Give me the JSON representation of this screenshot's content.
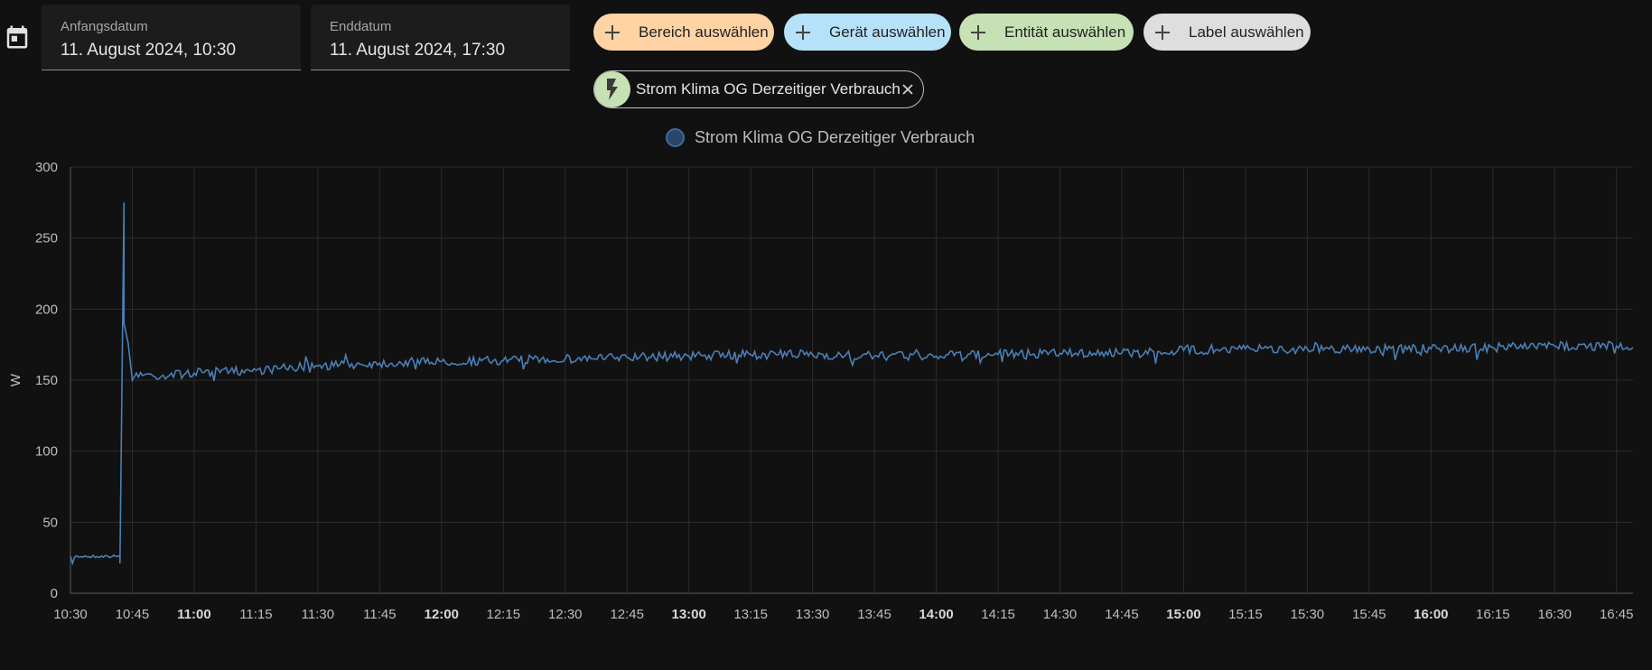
{
  "date_range": {
    "start": {
      "label": "Anfangsdatum",
      "value": "11. August 2024, 10:30"
    },
    "end": {
      "label": "Enddatum",
      "value": "11. August 2024, 17:30"
    }
  },
  "target_pickers": [
    {
      "label": "Bereich auswählen",
      "color": "#ffd3a4"
    },
    {
      "label": "Gerät auswählen",
      "color": "#b6e2f9"
    },
    {
      "label": "Entität auswählen",
      "color": "#c6e2b4"
    },
    {
      "label": "Label auswählen",
      "color": "#dedede"
    }
  ],
  "selected_entity": {
    "label": "Strom Klima OG Derzeitiger Verbrauch",
    "icon": "flash-icon"
  },
  "chart_data": {
    "type": "line",
    "ylabel": "W",
    "ylim": [
      0,
      300
    ],
    "yticks": [
      "0",
      "50",
      "100",
      "150",
      "200",
      "250",
      "300"
    ],
    "xlim": [
      "10:30",
      "16:49"
    ],
    "xticks": [
      "10:30",
      "10:45",
      "11:00",
      "11:15",
      "11:30",
      "11:45",
      "12:00",
      "12:15",
      "12:30",
      "12:45",
      "13:00",
      "13:15",
      "13:30",
      "13:45",
      "14:00",
      "14:15",
      "14:30",
      "14:45",
      "15:00",
      "15:15",
      "15:30",
      "15:45",
      "16:00",
      "16:15",
      "16:30",
      "16:45"
    ],
    "xticks_bold": [
      "11:00",
      "12:00",
      "13:00",
      "14:00",
      "15:00",
      "16:00"
    ],
    "grid": true,
    "legend": "top-center",
    "series": [
      {
        "name": "Strom Klima OG Derzeitiger Verbrauch",
        "color": "#4a7fb5",
        "x": [
          "10:30",
          "10:42",
          "10:42",
          "10:43",
          "10:43",
          "10:44",
          "10:45",
          "10:46",
          "10:50",
          "11:00",
          "11:15",
          "11:30",
          "11:45",
          "12:00",
          "12:15",
          "12:30",
          "12:45",
          "13:00",
          "13:15",
          "13:30",
          "13:45",
          "14:00",
          "14:15",
          "14:30",
          "14:45",
          "15:00",
          "15:15",
          "15:30",
          "15:45",
          "16:00",
          "16:15",
          "16:30",
          "16:45",
          "16:49"
        ],
        "y": [
          26,
          26,
          21,
          275,
          190,
          176,
          150,
          155,
          153,
          155,
          157,
          160,
          162,
          163,
          164,
          165,
          166,
          167,
          168,
          168,
          167,
          167,
          168,
          169,
          169,
          171,
          172,
          172,
          172,
          172,
          173,
          174,
          174,
          173
        ]
      }
    ]
  }
}
